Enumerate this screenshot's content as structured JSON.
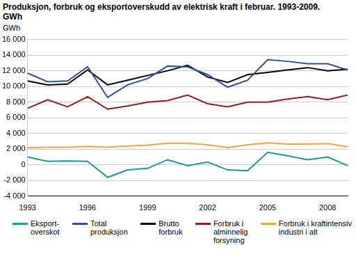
{
  "chart_data": {
    "type": "line",
    "title": "Produksjon, forbruk og eksportoverskudd av elektrisk kraft i februar. 1993-2009.\nGWh",
    "y_label": "GWh",
    "x": [
      1993,
      1994,
      1995,
      1996,
      1997,
      1998,
      1999,
      2000,
      2001,
      2002,
      2003,
      2004,
      2005,
      2006,
      2007,
      2008,
      2009
    ],
    "xlim": [
      1993,
      2009
    ],
    "xticks": [
      1993,
      1996,
      1999,
      2002,
      2005,
      2008
    ],
    "ylim": [
      -4000,
      16000
    ],
    "yticks": [
      {
        "value": -4000,
        "label": "-4 000"
      },
      {
        "value": -2000,
        "label": "-2 000"
      },
      0,
      {
        "value": 2000,
        "label": "2 000"
      },
      {
        "value": 4000,
        "label": "4 000"
      },
      {
        "value": 6000,
        "label": "6 000"
      },
      {
        "value": 8000,
        "label": "8 000"
      },
      {
        "value": 10000,
        "label": "10 000"
      },
      {
        "value": 12000,
        "label": "12 000"
      },
      {
        "value": 14000,
        "label": "14 000"
      },
      {
        "value": 16000,
        "label": "16 000"
      }
    ],
    "grid": true,
    "legend": "bottom",
    "series": [
      {
        "name": "Eksport-\noverskot",
        "color": "#1a9a9a",
        "values": [
          1000,
          450,
          500,
          450,
          -1600,
          -650,
          -450,
          650,
          -100,
          350,
          -650,
          -750,
          1600,
          1150,
          650,
          1000,
          -100
        ]
      },
      {
        "name": "Total\nproduksjon",
        "color": "#2e4f9e",
        "values": [
          11700,
          10600,
          10700,
          12500,
          8600,
          10200,
          11000,
          12600,
          12500,
          11500,
          9900,
          10800,
          13400,
          13200,
          12900,
          12900,
          12100
        ]
      },
      {
        "name": "Brutto\nforbruk",
        "color": "#000000",
        "values": [
          10700,
          10200,
          10300,
          12100,
          10200,
          10800,
          11400,
          12000,
          12700,
          11200,
          10500,
          11500,
          11800,
          12100,
          12400,
          12000,
          12200
        ]
      },
      {
        "name": "Forbruk i\nalminnelig\nforsyning",
        "color": "#9b1b1b",
        "values": [
          7200,
          8300,
          7400,
          8700,
          7100,
          7500,
          8000,
          8200,
          8900,
          7800,
          7400,
          8000,
          8000,
          8400,
          8700,
          8300,
          8900
        ]
      },
      {
        "name": "Forbruk i kraftintensiv\nindustri i alt",
        "color": "#f5a23e",
        "values": [
          2200,
          2250,
          2250,
          2350,
          2250,
          2400,
          2500,
          2750,
          2750,
          2550,
          2200,
          2550,
          2800,
          2650,
          2650,
          2700,
          2300
        ]
      }
    ]
  }
}
